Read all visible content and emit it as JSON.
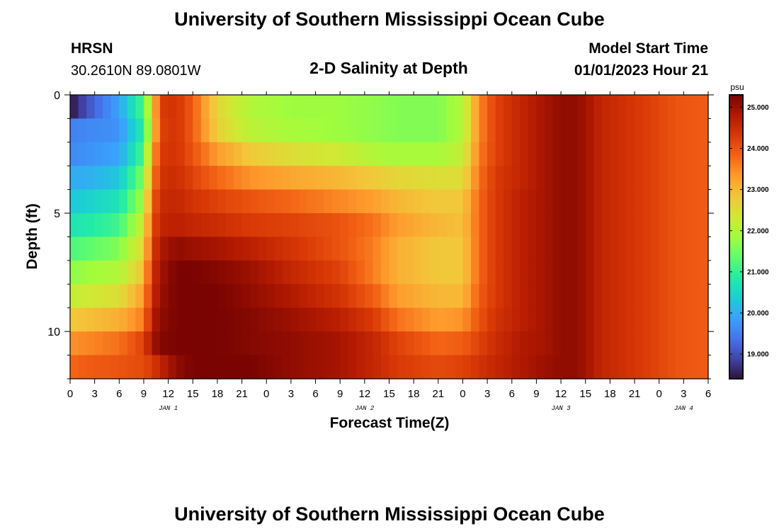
{
  "header": {
    "title": "University of Southern Mississippi Ocean Cube",
    "station": "HRSN",
    "coords": "30.2610N  89.0801W",
    "plot_title": "2-D Salinity at Depth",
    "model_start_label": "Model Start Time",
    "model_start_value": "01/01/2023 Hour 21"
  },
  "footer": {
    "title": "University of Southern Mississippi Ocean Cube"
  },
  "chart_data": {
    "type": "heatmap",
    "title": "2-D Salinity at Depth",
    "xlabel": "Forecast Time(Z)",
    "ylabel": "Depth (ft)",
    "x_range_hours": [
      0,
      78
    ],
    "y_range_ft": [
      0,
      12
    ],
    "x_tick_hours": [
      0,
      3,
      6,
      9,
      12,
      15,
      18,
      21,
      24,
      27,
      30,
      33,
      36,
      39,
      42,
      45,
      48,
      51,
      54,
      57,
      60,
      63,
      66,
      69,
      72,
      75,
      78
    ],
    "x_tick_labels": [
      "0",
      "3",
      "6",
      "9",
      "12",
      "15",
      "18",
      "21",
      "0",
      "3",
      "6",
      "9",
      "12",
      "15",
      "18",
      "21",
      "0",
      "3",
      "6",
      "9",
      "12",
      "15",
      "18",
      "21",
      "0",
      "3",
      "6"
    ],
    "date_labels": [
      {
        "hour": 12,
        "text": "JAN 1"
      },
      {
        "hour": 36,
        "text": "JAN 2"
      },
      {
        "hour": 60,
        "text": "JAN 3"
      },
      {
        "hour": 75,
        "text": "JAN 4"
      }
    ],
    "y_ticks": [
      0,
      5,
      10
    ],
    "depth_levels_ft": [
      0.5,
      1.5,
      2.5,
      3.5,
      4.5,
      5.5,
      6.5,
      7.5,
      8.5,
      9.5,
      10.5,
      11.5
    ],
    "time_step_hours": 1,
    "colorbar": {
      "unit": "psu",
      "min": 18.4,
      "max": 25.3,
      "ticks": [
        19.0,
        20.0,
        21.0,
        22.0,
        23.0,
        24.0,
        25.0
      ],
      "tick_labels": [
        "19.000",
        "20.000",
        "21.000",
        "22.000",
        "23.000",
        "24.000",
        "25.000"
      ],
      "colormap": [
        "#30123b",
        "#4145ab",
        "#4675ed",
        "#39a2fc",
        "#1bcfd4",
        "#24eca6",
        "#61fc6c",
        "#a4fc3b",
        "#d1e834",
        "#f3c63a",
        "#fe9b2d",
        "#f36315",
        "#d93806",
        "#b11901",
        "#7a0402"
      ]
    },
    "field_description": "salinity (psu) vs forecast hour and depth; rows top to bottom = depth_levels_ft",
    "keyframes_hours": [
      0,
      2,
      6,
      9,
      10,
      11,
      13,
      15,
      18,
      22,
      27,
      33,
      37,
      40,
      45,
      48,
      50,
      52,
      55,
      58,
      60,
      62,
      65,
      70,
      74,
      78
    ],
    "keyframe_rows": [
      [
        18.4,
        19.0,
        19.9,
        21.2,
        22.5,
        24.3,
        24.4,
        23.9,
        22.6,
        22.0,
        21.8,
        21.8,
        21.7,
        21.6,
        21.6,
        22.0,
        23.5,
        24.2,
        24.6,
        24.9,
        25.1,
        25.1,
        24.6,
        24.3,
        24.0,
        23.9
      ],
      [
        19.5,
        19.6,
        19.7,
        20.9,
        22.5,
        24.2,
        24.4,
        23.9,
        22.7,
        22.1,
        21.9,
        21.8,
        21.7,
        21.6,
        21.6,
        22.0,
        23.5,
        24.2,
        24.6,
        24.9,
        25.1,
        25.1,
        24.6,
        24.3,
        24.0,
        23.9
      ],
      [
        19.6,
        19.7,
        19.9,
        21.2,
        23.0,
        24.3,
        24.4,
        24.0,
        23.3,
        22.8,
        22.5,
        22.3,
        22.0,
        21.9,
        21.9,
        22.2,
        23.6,
        24.2,
        24.6,
        24.9,
        25.1,
        25.1,
        24.6,
        24.3,
        24.0,
        23.9
      ],
      [
        20.0,
        20.0,
        20.3,
        21.6,
        23.4,
        24.4,
        24.5,
        24.2,
        23.8,
        23.4,
        23.2,
        23.0,
        22.8,
        22.6,
        22.5,
        22.5,
        23.7,
        24.3,
        24.6,
        24.9,
        25.1,
        25.1,
        24.6,
        24.3,
        24.0,
        23.9
      ],
      [
        20.3,
        20.4,
        20.7,
        21.9,
        23.8,
        24.5,
        24.6,
        24.4,
        24.2,
        24.0,
        23.8,
        23.5,
        23.3,
        23.0,
        22.8,
        22.8,
        23.8,
        24.3,
        24.7,
        24.9,
        25.1,
        25.1,
        24.6,
        24.3,
        24.0,
        23.9
      ],
      [
        20.7,
        20.8,
        21.1,
        22.3,
        24.0,
        24.6,
        24.7,
        24.6,
        24.5,
        24.3,
        24.2,
        24.0,
        23.7,
        23.3,
        23.0,
        22.9,
        23.8,
        24.3,
        24.7,
        24.9,
        25.1,
        25.1,
        24.6,
        24.3,
        24.0,
        23.9
      ],
      [
        21.2,
        21.3,
        21.6,
        22.6,
        24.2,
        24.8,
        25.1,
        25.0,
        24.9,
        24.7,
        24.4,
        24.0,
        23.6,
        23.1,
        22.8,
        22.8,
        23.8,
        24.3,
        24.7,
        24.9,
        25.1,
        25.1,
        24.6,
        24.3,
        24.0,
        23.9
      ],
      [
        21.7,
        21.8,
        22.0,
        22.9,
        24.4,
        24.9,
        25.3,
        25.3,
        25.2,
        25.0,
        24.6,
        24.2,
        23.6,
        23.1,
        22.8,
        22.8,
        23.8,
        24.3,
        24.7,
        24.9,
        25.1,
        25.1,
        24.6,
        24.3,
        24.0,
        23.9
      ],
      [
        22.2,
        22.3,
        22.5,
        23.3,
        24.5,
        25.0,
        25.3,
        25.3,
        25.3,
        25.1,
        24.8,
        24.4,
        23.9,
        23.3,
        23.0,
        23.0,
        23.9,
        24.3,
        24.7,
        24.9,
        25.1,
        25.1,
        24.6,
        24.3,
        24.0,
        23.9
      ],
      [
        22.8,
        22.9,
        23.1,
        23.6,
        24.7,
        25.1,
        25.3,
        25.3,
        25.3,
        25.2,
        25.0,
        24.7,
        24.3,
        23.7,
        23.3,
        23.4,
        24.0,
        24.4,
        24.7,
        24.9,
        25.1,
        25.1,
        24.6,
        24.3,
        24.0,
        23.9
      ],
      [
        23.4,
        23.5,
        23.7,
        24.2,
        24.9,
        25.2,
        25.3,
        25.3,
        25.3,
        25.2,
        25.1,
        24.9,
        24.6,
        24.2,
        23.8,
        23.9,
        24.2,
        24.5,
        24.8,
        24.9,
        25.1,
        25.1,
        24.6,
        24.3,
        24.0,
        23.9
      ],
      [
        23.8,
        23.9,
        24.0,
        24.1,
        24.3,
        24.6,
        25.1,
        25.3,
        25.3,
        25.3,
        25.1,
        24.9,
        24.6,
        24.3,
        24.1,
        24.2,
        24.4,
        24.6,
        24.8,
        25.0,
        25.1,
        25.1,
        24.6,
        24.3,
        24.0,
        23.9
      ]
    ]
  }
}
